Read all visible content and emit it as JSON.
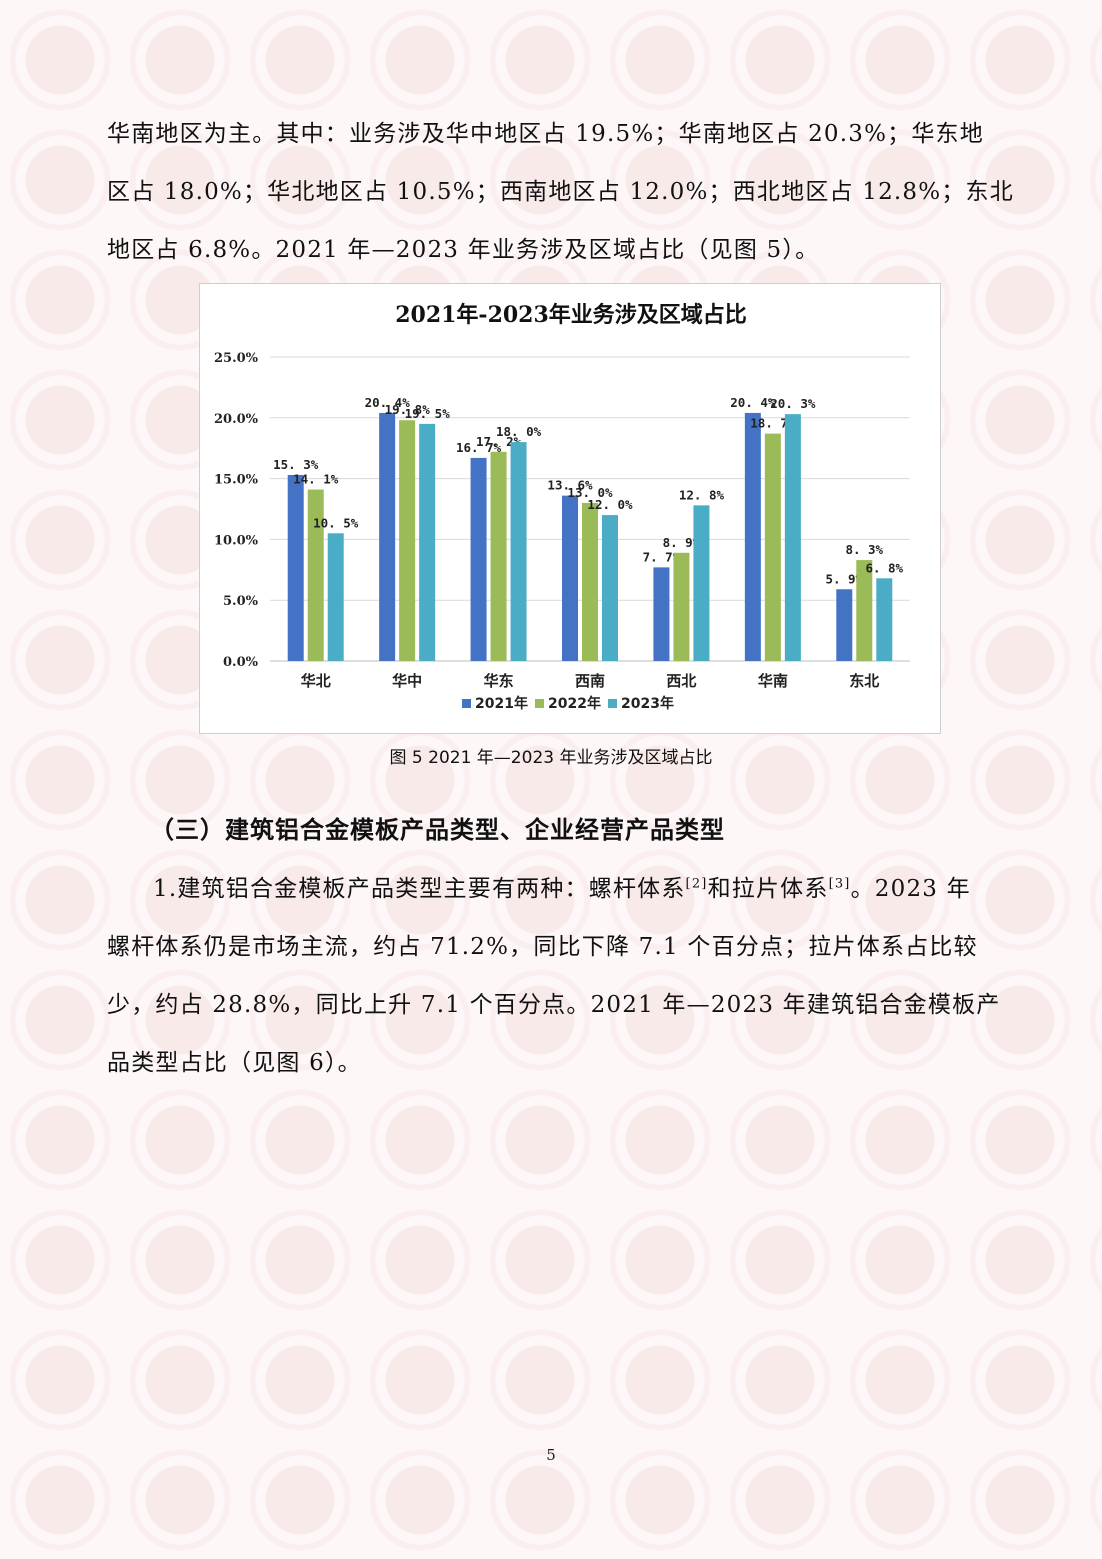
{
  "intro_paragraph": {
    "lines": [
      "华南地区为主。其中：业务涉及华中地区占 19.5%；华南地区占 20.3%；华东地",
      "区占 18.0%；华北地区占 10.5%；西南地区占 12.0%；西北地区占 12.8%；东北",
      "地区占 6.8%。2021 年—2023 年业务涉及区域占比（见图 5）。"
    ]
  },
  "chart_data": {
    "type": "bar",
    "title": "2021年-2023年业务涉及区域占比",
    "categories": [
      "华北",
      "华中",
      "华东",
      "西南",
      "西北",
      "华南",
      "东北"
    ],
    "series": [
      {
        "name": "2021年",
        "values": [
          15.3,
          20.4,
          16.7,
          13.6,
          7.7,
          20.4,
          5.9
        ],
        "color": "#4472c4"
      },
      {
        "name": "2022年",
        "values": [
          14.1,
          19.8,
          17.2,
          13.0,
          8.9,
          18.7,
          8.3
        ],
        "color": "#9bbb59"
      },
      {
        "name": "2023年",
        "values": [
          10.5,
          19.5,
          18.0,
          12.0,
          12.8,
          20.3,
          6.8
        ],
        "color": "#4bacc6"
      }
    ],
    "data_labels": [
      [
        "15. 3%",
        "20. 4%",
        "16. 7%",
        "13. 6%",
        "7. 7%",
        "20. 4%",
        "5. 9%"
      ],
      [
        "14. 1%",
        "19. 8%",
        "17. 2%",
        "13. 0%",
        "8. 9%",
        "18. 7%",
        "8. 3%"
      ],
      [
        "10. 5%",
        "19. 5%",
        "18. 0%",
        "12. 0%",
        "12. 8%",
        "20. 3%",
        "6. 8%"
      ]
    ],
    "yticks": [
      "0.0%",
      "5.0%",
      "10.0%",
      "15.0%",
      "20.0%",
      "25.0%"
    ],
    "ylim": [
      0,
      25
    ],
    "grid": true,
    "legend": "bottom",
    "xlabel": "",
    "ylabel": ""
  },
  "figure_caption": "图 5 2021 年—2023 年业务涉及区域占比",
  "section_heading": "（三）建筑铝合金模板产品类型、企业经营产品类型",
  "product_paragraph": {
    "line1_before_ref2": "1.建筑铝合金模板产品类型主要有两种：螺杆体系",
    "ref2": "[2]",
    "line1_between": "和拉片体系",
    "ref3": "[3]",
    "line1_after": "。2023 年",
    "line2": "螺杆体系仍是市场主流，约占 71.2%，同比下降 7.1 个百分点；拉片体系占比较",
    "line3": "少，约占 28.8%，同比上升 7.1 个百分点。2021 年—2023 年建筑铝合金模板产",
    "line4": "品类型占比（见图 6）。"
  },
  "page_number": "5"
}
